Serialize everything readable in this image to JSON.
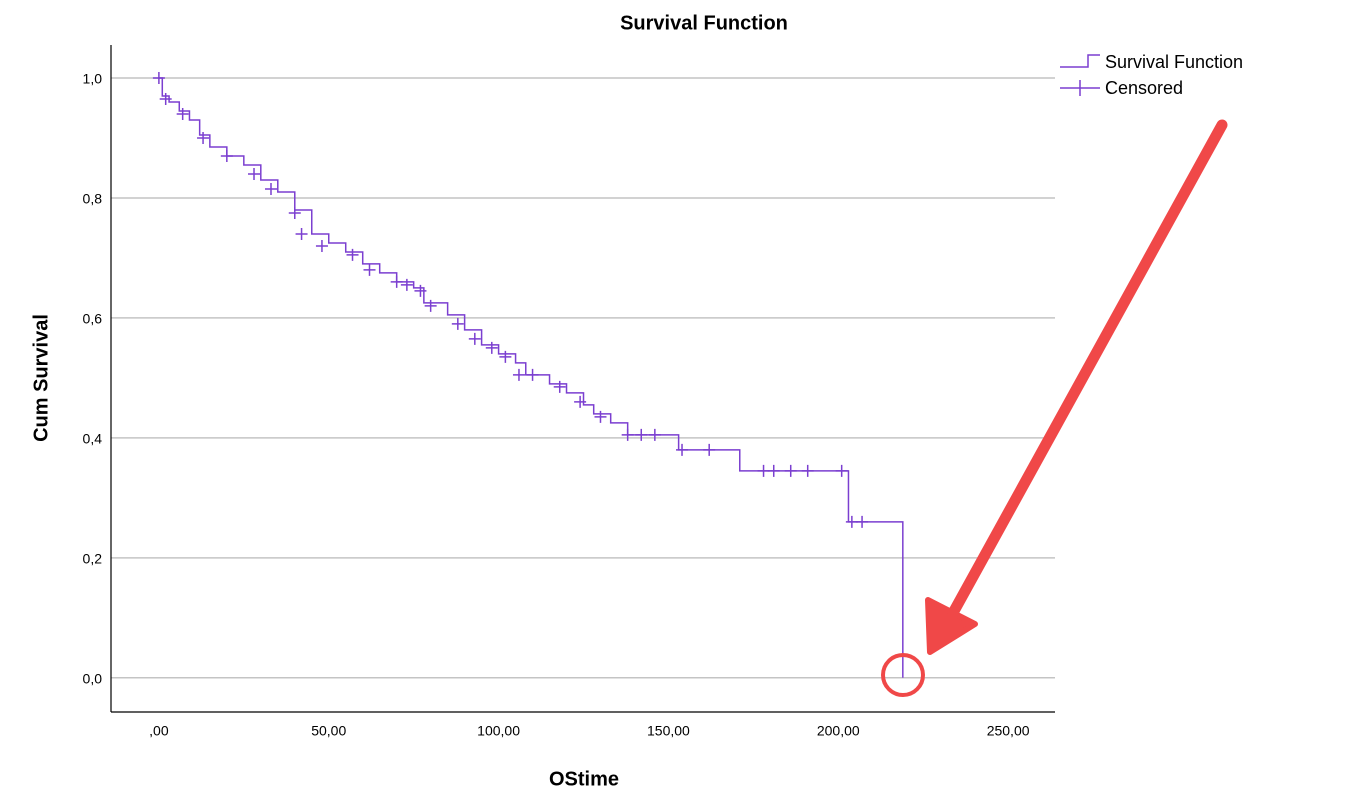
{
  "chart_data": {
    "type": "step",
    "title": "Survival Function",
    "x_label": "OStime",
    "y_label": "Cum Survival",
    "xlim": [
      -14.1,
      263.8
    ],
    "ylim": [
      -0.057,
      1.055
    ],
    "xticks": [
      {
        "value": 0,
        "label": ",00"
      },
      {
        "value": 50,
        "label": "50,00"
      },
      {
        "value": 100,
        "label": "100,00"
      },
      {
        "value": 150,
        "label": "150,00"
      },
      {
        "value": 200,
        "label": "200,00"
      },
      {
        "value": 250,
        "label": "250,00"
      }
    ],
    "yticks": [
      {
        "value": 0,
        "label": "0,0"
      },
      {
        "value": 0.2,
        "label": "0,2"
      },
      {
        "value": 0.4,
        "label": "0,4"
      },
      {
        "value": 0.6,
        "label": "0,6"
      },
      {
        "value": 0.8,
        "label": "0,8"
      },
      {
        "value": 1,
        "label": "1,0"
      }
    ],
    "grid": true,
    "legend": "top-right",
    "series": [
      {
        "name": "Survival Function",
        "color": "#7b3fd0",
        "marker": "none",
        "x": [
          0,
          1,
          3,
          6,
          9,
          12,
          15,
          20,
          25,
          30,
          35,
          40,
          45,
          50,
          55,
          60,
          65,
          70,
          75,
          78,
          85,
          90,
          95,
          100,
          105,
          108,
          115,
          120,
          125,
          128,
          133,
          138,
          153,
          171,
          203,
          219
        ],
        "values": [
          1.0,
          0.97,
          0.96,
          0.945,
          0.93,
          0.905,
          0.885,
          0.87,
          0.855,
          0.83,
          0.81,
          0.78,
          0.74,
          0.725,
          0.71,
          0.69,
          0.675,
          0.66,
          0.65,
          0.625,
          0.605,
          0.58,
          0.555,
          0.54,
          0.525,
          0.505,
          0.49,
          0.475,
          0.455,
          0.44,
          0.425,
          0.405,
          0.38,
          0.345,
          0.26,
          0.0
        ]
      },
      {
        "name": "Censored",
        "color": "#7b3fd0",
        "marker": "plus",
        "x": [
          0,
          2,
          7,
          13,
          20,
          28,
          33,
          40,
          42,
          48,
          57,
          62,
          70,
          73,
          77,
          80,
          88,
          93,
          98,
          102,
          106,
          110,
          118,
          124,
          130,
          138,
          142,
          146,
          154,
          162,
          178,
          181,
          186,
          191,
          201,
          204,
          207
        ],
        "values": [
          1.0,
          0.965,
          0.94,
          0.9,
          0.87,
          0.84,
          0.815,
          0.775,
          0.74,
          0.72,
          0.705,
          0.68,
          0.66,
          0.655,
          0.645,
          0.62,
          0.59,
          0.565,
          0.55,
          0.535,
          0.505,
          0.505,
          0.485,
          0.46,
          0.435,
          0.405,
          0.405,
          0.405,
          0.38,
          0.38,
          0.345,
          0.345,
          0.345,
          0.345,
          0.345,
          0.26,
          0.26
        ]
      }
    ]
  }
}
